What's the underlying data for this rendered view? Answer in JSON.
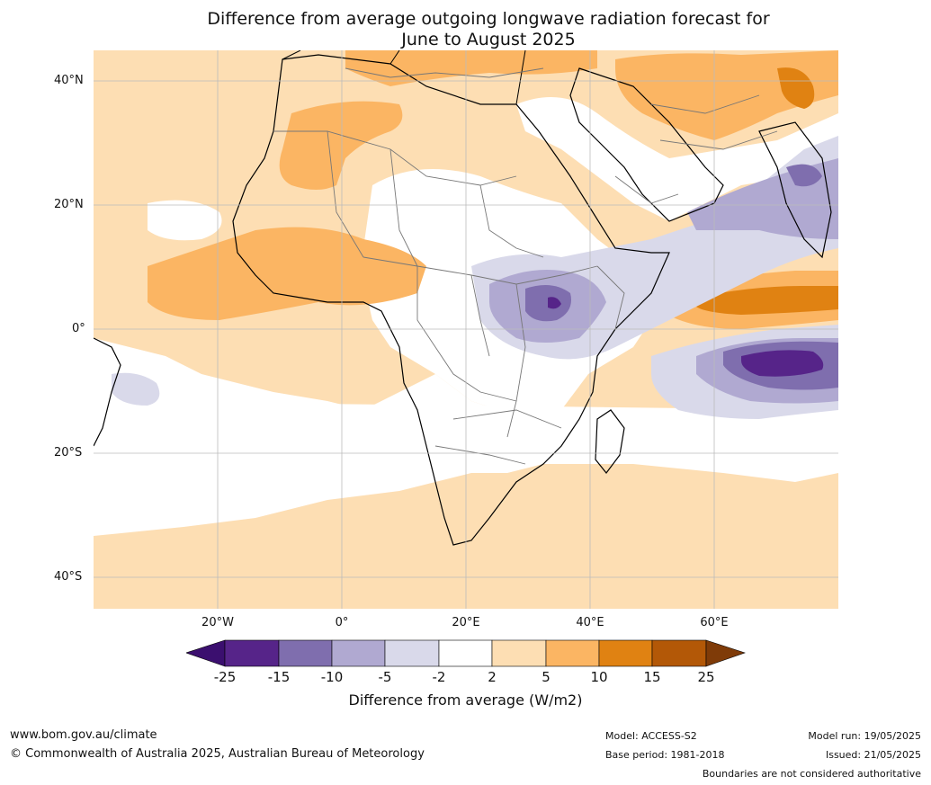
{
  "title_line1": "Difference from average outgoing longwave radiation forecast for",
  "title_line2": "June to August 2025",
  "map": {
    "lat_labels": [
      "40°N",
      "20°N",
      "0°",
      "20°S",
      "40°S"
    ],
    "lon_labels": [
      "20°W",
      "0°",
      "20°E",
      "40°E",
      "60°E"
    ],
    "extent_lon": [
      -40,
      80
    ],
    "extent_lat": [
      -45,
      45
    ]
  },
  "colorbar": {
    "ticks": [
      "-25",
      "-15",
      "-10",
      "-5",
      "-2",
      "2",
      "5",
      "10",
      "15",
      "25"
    ],
    "colors": [
      "#3b0f6f",
      "#562489",
      "#7f6eae",
      "#b0a9d1",
      "#d9d9ea",
      "#ffffff",
      "#fddeb3",
      "#fbb563",
      "#e08212",
      "#b35807",
      "#7f3b08"
    ],
    "label": "Difference from average (W/m2)"
  },
  "footer": {
    "website": "www.bom.gov.au/climate",
    "copyright": "© Commonwealth of Australia 2025, Australian Bureau of Meteorology",
    "model": "Model: ACCESS-S2",
    "base_period": "Base period: 1981-2018",
    "model_run": "Model run: 19/05/2025",
    "issued": "Issued: 21/05/2025",
    "disclaimer": "Boundaries are not considered authoritative"
  }
}
